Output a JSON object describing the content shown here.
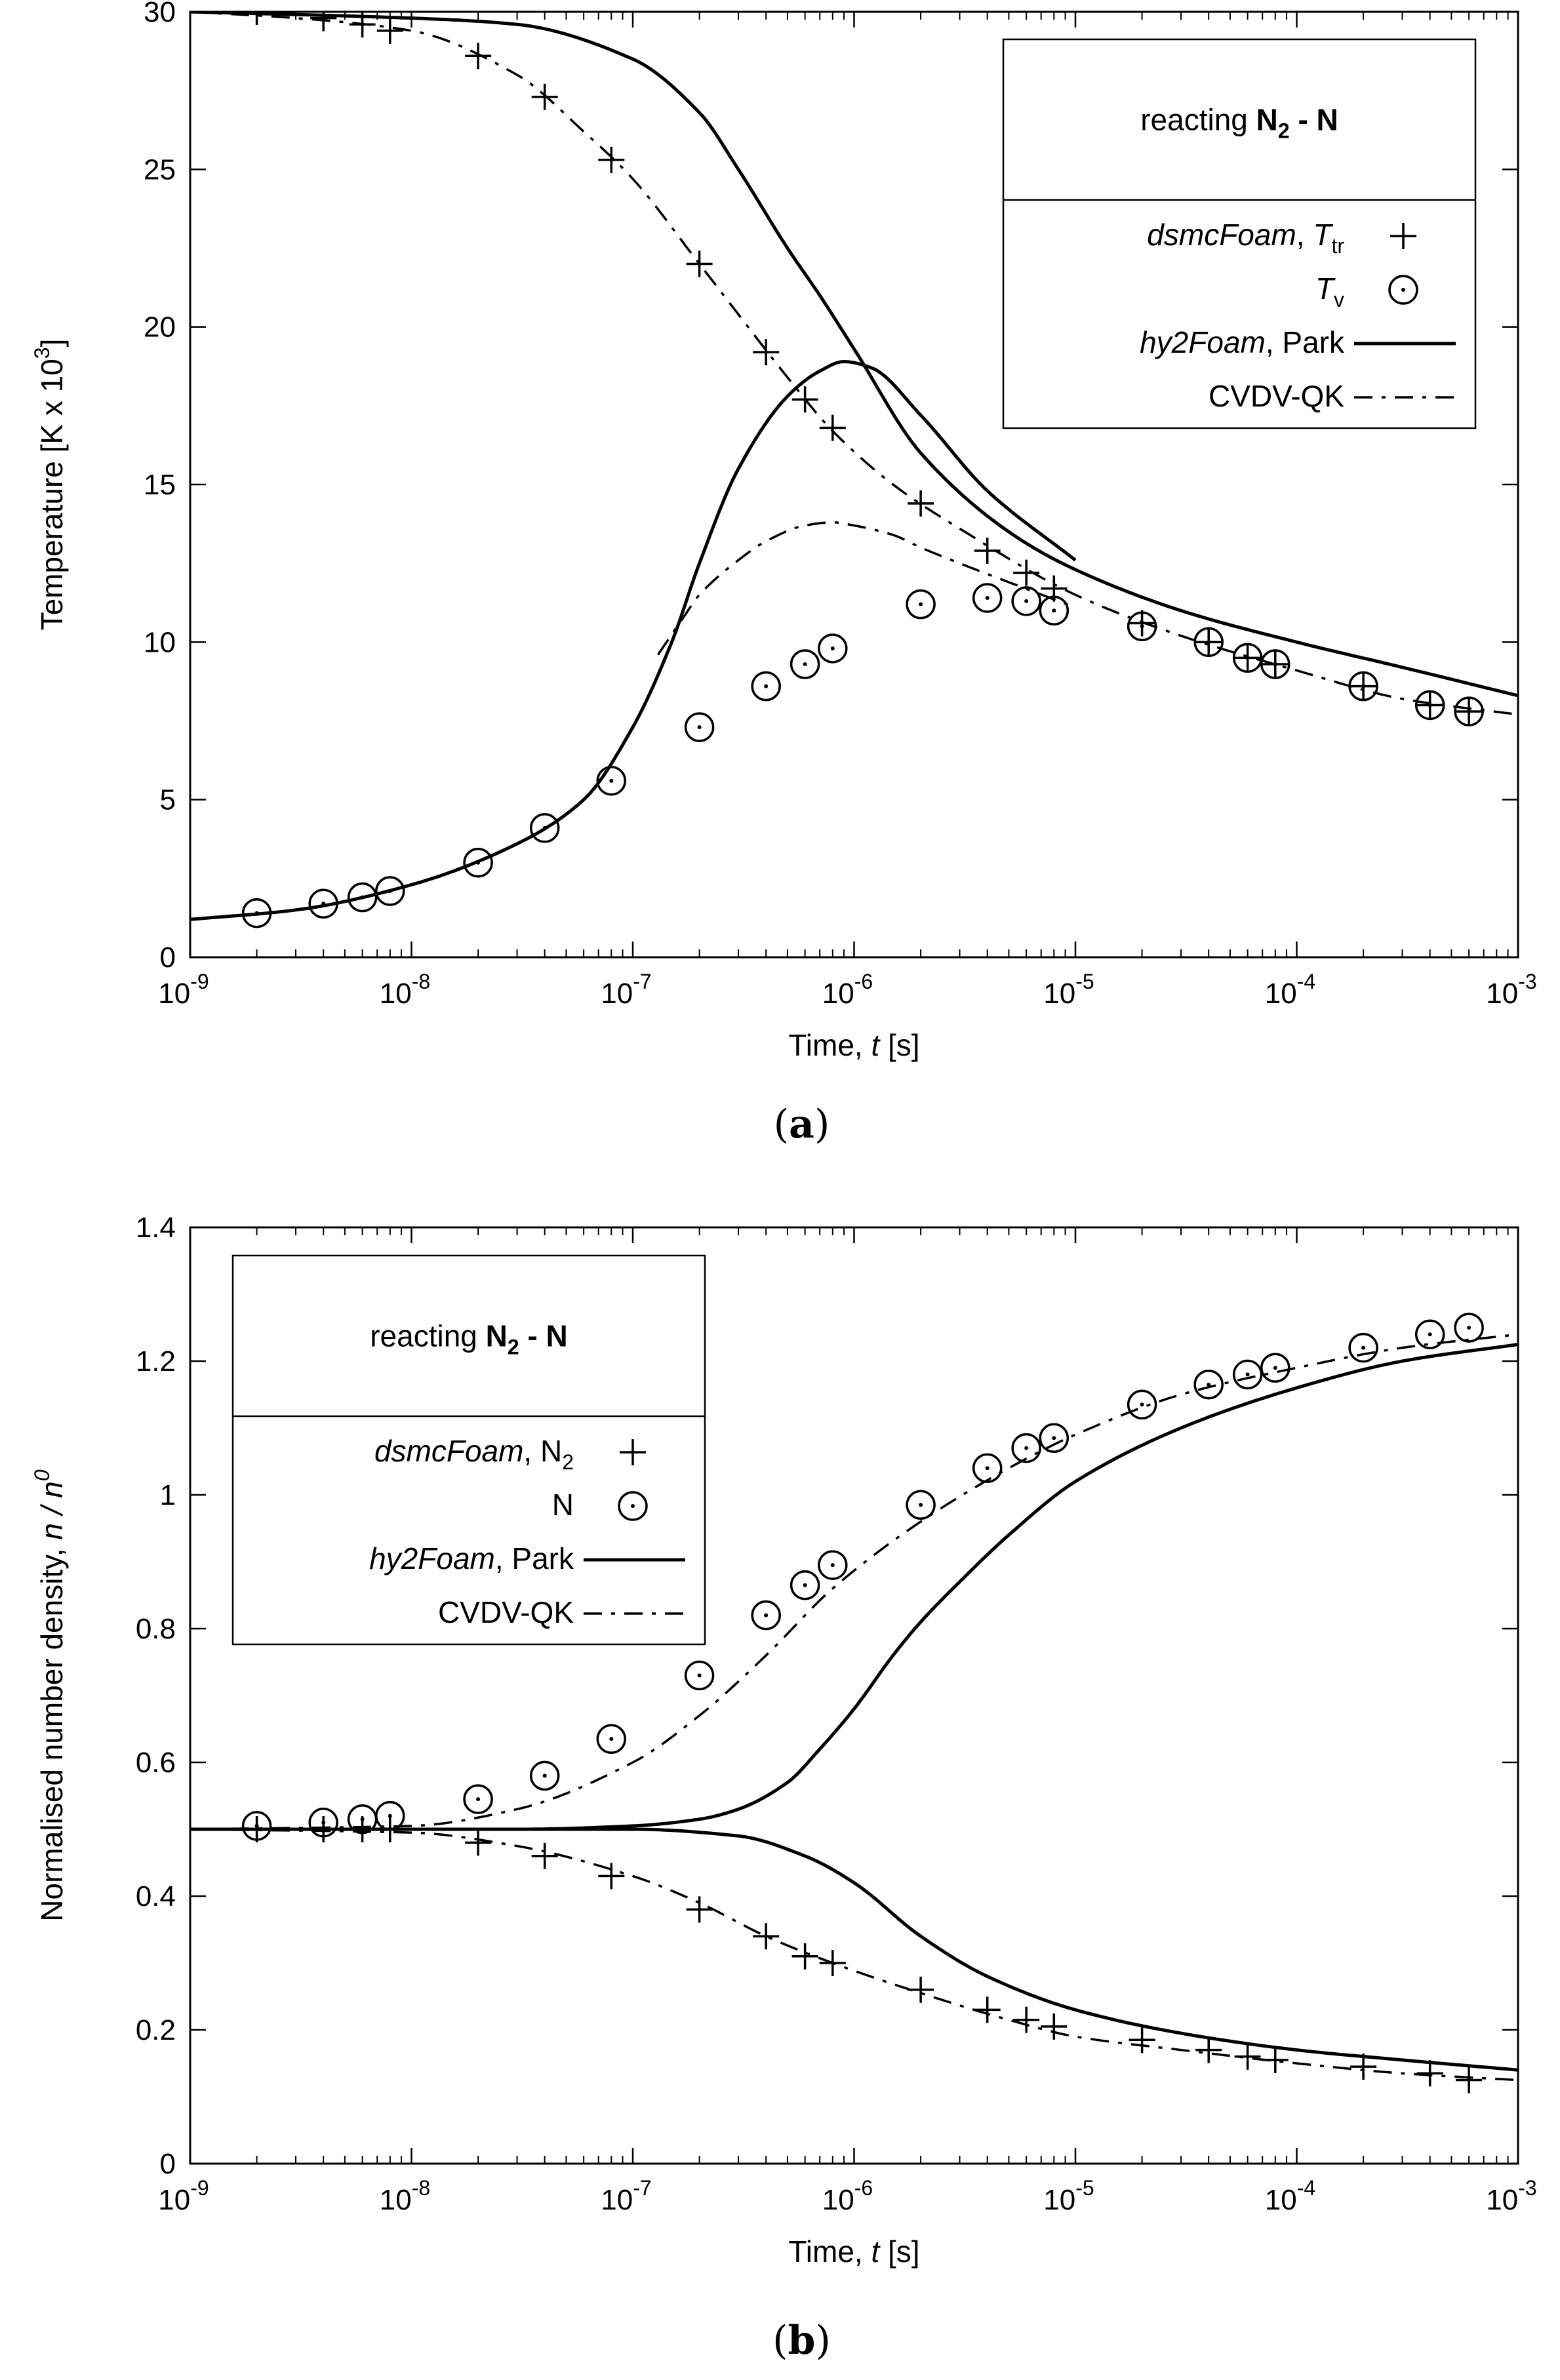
{
  "chart_data": [
    {
      "type": "line",
      "panel": "a",
      "caption_letter": "a",
      "x_scale": "log",
      "xlabel_text": "Time, ",
      "xlabel_var": "t",
      "xlabel_unit": "[s]",
      "ylabel_text": "Temperature  [K x 10",
      "ylabel_sup": "3",
      "ylabel_end": "]",
      "xlim": [
        1e-09,
        0.001
      ],
      "ylim": [
        0,
        30
      ],
      "x_tick_exponents": [
        "-9",
        "-8",
        "-7",
        "-6",
        "-5",
        "-4",
        "-3"
      ],
      "y_ticks": [
        "0",
        "5",
        "10",
        "15",
        "20",
        "25",
        "30"
      ],
      "legend": {
        "position": "top-right",
        "title_prefix": "reacting ",
        "title_species": "N",
        "title_sub": "2",
        "title_suffix": " - N",
        "entries": [
          {
            "italic": "dsmcFoam",
            "plain": ", ",
            "var": "T",
            "sub": "tr",
            "marker": "plus"
          },
          {
            "italic": "",
            "plain": "",
            "var": "T",
            "sub": "v",
            "marker": "circle"
          },
          {
            "italic": "hy2Foam",
            "plain": ", Park",
            "var": "",
            "sub": "",
            "marker": "solid"
          },
          {
            "italic": "",
            "plain": "CVDV-QK",
            "var": "",
            "sub": "",
            "marker": "dashdot"
          }
        ]
      },
      "series": [
        {
          "name": "dsmcFoam T_tr",
          "style": "plus",
          "x": [
            2e-09,
            4e-09,
            6e-09,
            8e-09,
            2e-08,
            4e-08,
            8e-08,
            2e-07,
            4e-07,
            6e-07,
            8e-07,
            2e-06,
            4e-06,
            6e-06,
            8e-06,
            2e-05,
            4e-05,
            6e-05,
            8e-05,
            0.0002,
            0.0004,
            0.0006
          ],
          "y": [
            30.0,
            29.8,
            29.6,
            29.4,
            28.6,
            27.3,
            25.3,
            22.0,
            19.2,
            17.7,
            16.8,
            14.4,
            12.9,
            12.2,
            11.7,
            10.6,
            10.0,
            9.5,
            9.3,
            8.6,
            8.0,
            7.8
          ]
        },
        {
          "name": "dsmcFoam T_v",
          "style": "circle",
          "x": [
            2e-09,
            4e-09,
            6e-09,
            8e-09,
            2e-08,
            4e-08,
            8e-08,
            2e-07,
            4e-07,
            6e-07,
            8e-07,
            2e-06,
            4e-06,
            6e-06,
            8e-06,
            2e-05,
            4e-05,
            6e-05,
            8e-05,
            0.0002,
            0.0004,
            0.0006
          ],
          "y": [
            1.4,
            1.7,
            1.9,
            2.1,
            3.0,
            4.1,
            5.6,
            7.3,
            8.6,
            9.3,
            9.8,
            11.2,
            11.4,
            11.3,
            11.0,
            10.5,
            10.0,
            9.5,
            9.3,
            8.6,
            8.0,
            7.8
          ]
        },
        {
          "name": "hy2Foam Park T_tr",
          "style": "solid",
          "x": [
            1e-09,
            1e-08,
            3e-08,
            1e-07,
            2e-07,
            3e-07,
            5e-07,
            7e-07,
            1e-06,
            2e-06,
            5e-06,
            1e-05,
            3e-05,
            0.0001,
            0.0003,
            0.001
          ],
          "y": [
            30.0,
            29.8,
            29.6,
            28.5,
            26.8,
            25.0,
            22.5,
            21.0,
            19.3,
            16.0,
            13.5,
            12.3,
            11.0,
            10.0,
            9.2,
            8.3
          ]
        },
        {
          "name": "hy2Foam Park T_v",
          "style": "solid",
          "x": [
            1e-09,
            3e-09,
            1e-08,
            3e-08,
            6e-08,
            1e-07,
            1.5e-07,
            2e-07,
            3e-07,
            5e-07,
            7e-07,
            9e-07,
            1.2e-06,
            2e-06,
            4e-06,
            1e-05
          ],
          "y": [
            1.2,
            1.5,
            2.3,
            3.6,
            5.0,
            7.3,
            10.0,
            12.5,
            15.5,
            17.8,
            18.6,
            18.9,
            18.7,
            17.2,
            14.8,
            12.6
          ]
        },
        {
          "name": "CVDV-QK T_tr",
          "style": "dashdot",
          "x": [
            1e-09,
            3e-09,
            1e-08,
            3e-08,
            6e-08,
            1e-07,
            2e-07,
            3e-07,
            5e-07,
            8e-07,
            1.5e-06,
            3e-06,
            1e-05,
            3e-05,
            0.0001,
            0.0003,
            0.001
          ],
          "y": [
            30.0,
            29.8,
            29.4,
            28.0,
            26.2,
            24.7,
            22.0,
            20.4,
            18.4,
            16.7,
            15.0,
            13.6,
            11.5,
            10.2,
            9.1,
            8.2,
            7.7
          ]
        },
        {
          "name": "CVDV-QK T_v",
          "style": "dashdot",
          "x": [
            1.3e-07,
            1.7e-07,
            2e-07,
            3e-07,
            4e-07,
            6e-07,
            8e-07,
            1e-06,
            1.5e-06,
            2e-06,
            3e-06,
            5e-06,
            1e-05
          ],
          "y": [
            9.6,
            10.8,
            11.5,
            12.6,
            13.2,
            13.7,
            13.8,
            13.7,
            13.4,
            13.0,
            12.5,
            11.9,
            11.1
          ]
        }
      ]
    },
    {
      "type": "line",
      "panel": "b",
      "caption_letter": "b",
      "x_scale": "log",
      "xlabel_text": "Time, ",
      "xlabel_var": "t",
      "xlabel_unit": "[s]",
      "ylabel_text": "Normalised number density, ",
      "ylabel_var": "n / n",
      "ylabel_sup": "0",
      "xlim": [
        1e-09,
        0.001
      ],
      "ylim": [
        0,
        1.4
      ],
      "x_tick_exponents": [
        "-9",
        "-8",
        "-7",
        "-6",
        "-5",
        "-4",
        "-3"
      ],
      "y_ticks": [
        "0",
        "0.2",
        "0.4",
        "0.6",
        "0.8",
        "1",
        "1.2",
        "1.4"
      ],
      "legend": {
        "position": "top-left",
        "title_prefix": "reacting ",
        "title_species": "N",
        "title_sub": "2",
        "title_suffix": " - N",
        "entries": [
          {
            "italic": "dsmcFoam",
            "plain": ", N",
            "var": "",
            "sub": "2",
            "marker": "plus"
          },
          {
            "italic": "",
            "plain": "N",
            "var": "",
            "sub": "",
            "marker": "circle"
          },
          {
            "italic": "hy2Foam",
            "plain": ", Park",
            "var": "",
            "sub": "",
            "marker": "solid"
          },
          {
            "italic": "",
            "plain": "CVDV-QK",
            "var": "",
            "sub": "",
            "marker": "dashdot"
          }
        ]
      },
      "series": [
        {
          "name": "dsmcFoam N2",
          "style": "plus",
          "x": [
            2e-09,
            4e-09,
            6e-09,
            8e-09,
            2e-08,
            4e-08,
            8e-08,
            2e-07,
            4e-07,
            6e-07,
            8e-07,
            2e-06,
            4e-06,
            6e-06,
            8e-06,
            2e-05,
            4e-05,
            6e-05,
            8e-05,
            0.0002,
            0.0004,
            0.0006
          ],
          "y": [
            0.5,
            0.5,
            0.5,
            0.5,
            0.48,
            0.46,
            0.43,
            0.38,
            0.34,
            0.31,
            0.3,
            0.26,
            0.23,
            0.215,
            0.205,
            0.185,
            0.17,
            0.16,
            0.155,
            0.145,
            0.135,
            0.125
          ]
        },
        {
          "name": "dsmcFoam N",
          "style": "circle",
          "x": [
            2e-09,
            4e-09,
            6e-09,
            8e-09,
            2e-08,
            4e-08,
            8e-08,
            2e-07,
            4e-07,
            6e-07,
            8e-07,
            2e-06,
            4e-06,
            6e-06,
            8e-06,
            2e-05,
            4e-05,
            6e-05,
            8e-05,
            0.0002,
            0.0004,
            0.0006
          ],
          "y": [
            0.505,
            0.51,
            0.515,
            0.52,
            0.545,
            0.58,
            0.635,
            0.73,
            0.82,
            0.865,
            0.895,
            0.985,
            1.04,
            1.07,
            1.085,
            1.135,
            1.165,
            1.18,
            1.19,
            1.22,
            1.24,
            1.25
          ]
        },
        {
          "name": "hy2Foam Park N2",
          "style": "solid",
          "x": [
            1e-09,
            1e-08,
            3e-08,
            1e-07,
            3e-07,
            6e-07,
            1e-06,
            2e-06,
            4e-06,
            1e-05,
            3e-05,
            0.0001,
            0.0003,
            0.001
          ],
          "y": [
            0.5,
            0.5,
            0.5,
            0.5,
            0.49,
            0.46,
            0.42,
            0.34,
            0.28,
            0.23,
            0.195,
            0.17,
            0.155,
            0.14
          ]
        },
        {
          "name": "hy2Foam Park N",
          "style": "solid",
          "x": [
            1e-09,
            1e-08,
            3e-08,
            1e-07,
            2e-07,
            3e-07,
            5e-07,
            7e-07,
            1e-06,
            1.5e-06,
            2e-06,
            3e-06,
            5e-06,
            1e-05,
            3e-05,
            0.0001,
            0.0003,
            0.001
          ],
          "y": [
            0.5,
            0.5,
            0.5,
            0.505,
            0.515,
            0.53,
            0.57,
            0.62,
            0.68,
            0.76,
            0.81,
            0.87,
            0.94,
            1.02,
            1.1,
            1.16,
            1.2,
            1.225
          ]
        },
        {
          "name": "CVDV-QK N2",
          "style": "dashdot",
          "x": [
            1e-09,
            1e-08,
            3e-08,
            1e-07,
            2e-07,
            4e-07,
            8e-07,
            2e-06,
            5e-06,
            1e-05,
            3e-05,
            0.0001,
            0.0003,
            0.001
          ],
          "y": [
            0.5,
            0.495,
            0.475,
            0.43,
            0.39,
            0.34,
            0.3,
            0.255,
            0.215,
            0.19,
            0.17,
            0.15,
            0.135,
            0.125
          ]
        },
        {
          "name": "CVDV-QK N",
          "style": "dashdot",
          "x": [
            1e-09,
            1e-08,
            3e-08,
            1e-07,
            2e-07,
            4e-07,
            8e-07,
            2e-06,
            5e-06,
            1e-05,
            3e-05,
            0.0001,
            0.0003,
            0.001
          ],
          "y": [
            0.5,
            0.505,
            0.53,
            0.6,
            0.67,
            0.76,
            0.86,
            0.96,
            1.04,
            1.09,
            1.15,
            1.19,
            1.22,
            1.24
          ]
        }
      ]
    }
  ]
}
